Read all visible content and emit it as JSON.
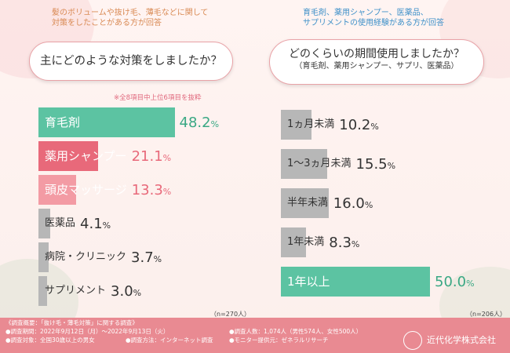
{
  "left": {
    "note": [
      "髪のボリュームや抜け毛、薄毛などに関して",
      "対策をしたことがある方が回答"
    ],
    "question": "主にどのような対策をしましたか？",
    "subnote": "※全8項目中上位6項目を抜粋",
    "n": "（n=270人）"
  },
  "right": {
    "note": [
      "育毛剤、薬用シャンプー、医薬品、",
      "サプリメントの使用経験がある方が回答"
    ],
    "question": "どのくらいの期間使用しましたか？",
    "question_sub": "（育毛剤、薬用シャンプー、サプリ、医薬品）",
    "n": "（n=206人）"
  },
  "chart_data": [
    {
      "type": "bar",
      "orientation": "horizontal",
      "categories": [
        "育毛剤",
        "薬用シャンプー",
        "頭皮マッサージ",
        "医薬品",
        "病院・クリニック",
        "サプリメント"
      ],
      "values": [
        48.2,
        21.1,
        13.3,
        4.1,
        3.7,
        3.0
      ],
      "value_labels": [
        "48.2",
        "21.1",
        "13.3",
        "4.1",
        "3.7",
        "3.0"
      ],
      "unit": "%",
      "colors": [
        "#5cc3a2",
        "#e8697a",
        "#f39ba4",
        "#b7b7b7",
        "#b7b7b7",
        "#b7b7b7"
      ]
    },
    {
      "type": "bar",
      "orientation": "horizontal",
      "categories": [
        "1ヵ月未満",
        "1～3ヵ月未満",
        "半年未満",
        "1年未満",
        "1年以上"
      ],
      "values": [
        10.2,
        15.5,
        16.0,
        8.3,
        50.0
      ],
      "value_labels": [
        "10.2",
        "15.5",
        "16.0",
        "8.3",
        "50.0"
      ],
      "unit": "%",
      "colors": [
        "#b7b7b7",
        "#b7b7b7",
        "#b7b7b7",
        "#b7b7b7",
        "#5cc3a2"
      ]
    }
  ],
  "footer": {
    "title": "《調査概要：「抜け毛・薄毛対策」に関する調査》",
    "period": "●調査期間：2022年9月12日（月）～2022年9月13日（火）",
    "target": "●調査対象：全国30歳以上の男女",
    "method": "●調査方法：インターネット調査",
    "count": "●調査人数：1,074人（男性574人、女性500人）",
    "provider": "●モニター提供元：ゼネラルリサーチ",
    "company": "近代化学株式会社"
  },
  "colors": {
    "accent_pink": "#e98a92",
    "accent_green": "#5cc3a2",
    "border_pink": "#e9a2a7"
  }
}
